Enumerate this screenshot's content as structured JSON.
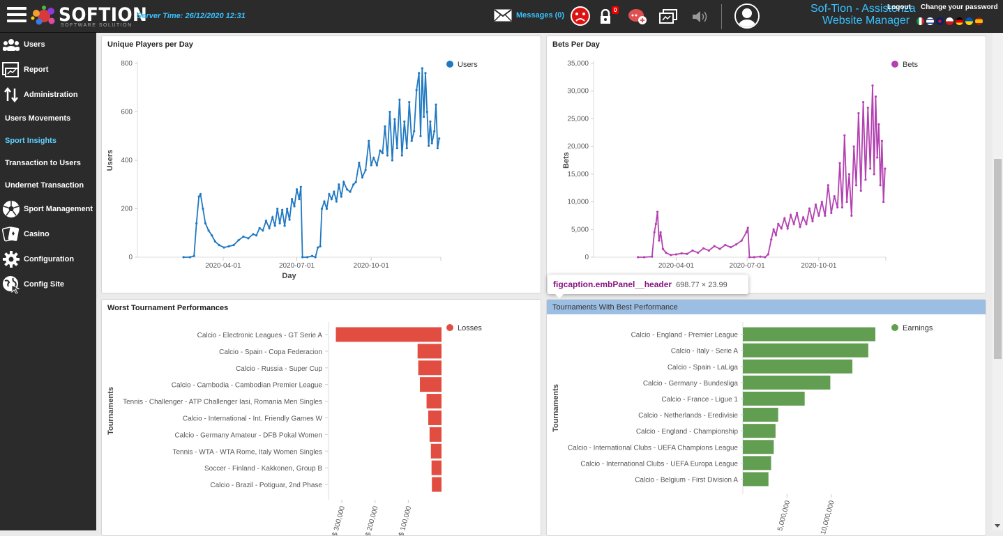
{
  "topbar": {
    "brand": "SOFTION",
    "brand_sub": "SOFTWARE SOLUTION",
    "server_time_label": "Server Time:",
    "server_time_value": "26/12/2020 12:31",
    "messages_label": "Messages (0)",
    "lock_badge": "0",
    "account_name": "Sof-Tion - Assistenza",
    "logout": "Logout",
    "change_password": "Change your password",
    "role": "Website Manager",
    "flags": [
      "it",
      "il",
      "gb",
      "cz",
      "de",
      "ua",
      "es"
    ]
  },
  "sidebar": {
    "items": [
      {
        "label": "Users",
        "icon": "users-icon"
      },
      {
        "label": "Report",
        "icon": "report-icon"
      },
      {
        "label": "Administration",
        "icon": "arrows-updown-icon"
      }
    ],
    "subitems": [
      {
        "label": "Users Movements",
        "active": false
      },
      {
        "label": "Sport Insights",
        "active": true
      },
      {
        "label": "Transaction to Users",
        "active": false
      },
      {
        "label": "Undernet Transaction",
        "active": false
      }
    ],
    "items2": [
      {
        "label": "Sport Management",
        "icon": "soccer-ball-icon"
      },
      {
        "label": "Casino",
        "icon": "cards-icon"
      },
      {
        "label": "Configuration",
        "icon": "gear-icon"
      },
      {
        "label": "Config Site",
        "icon": "globe-cursor-icon"
      }
    ]
  },
  "tooltip": {
    "selector": "figcaption.embPanel__header",
    "size": "698.77 × 23.99"
  },
  "chart_data": [
    {
      "type": "line",
      "title": "Unique Players per Day",
      "xlabel": "Day",
      "ylabel": "Users",
      "legend": "Users",
      "legend_position": "top-right",
      "color": "#1f78c1",
      "ylim": [
        0,
        800
      ],
      "yticks": [
        "0",
        "200",
        "400",
        "600",
        "800"
      ],
      "xticks": [
        {
          "x": "2020-04-01",
          "label": "2020-04-01"
        },
        {
          "x": "2020-07-01",
          "label": "2020-07-01"
        },
        {
          "x": "2020-10-01",
          "label": "2020-10-01"
        }
      ],
      "xlim": [
        "2019-12-17",
        "2020-12-26"
      ],
      "points": [
        [
          "2020-02-12",
          0
        ],
        [
          "2020-02-20",
          0
        ],
        [
          "2020-02-25",
          5
        ],
        [
          "2020-02-28",
          140
        ],
        [
          "2020-03-02",
          250
        ],
        [
          "2020-03-04",
          260
        ],
        [
          "2020-03-07",
          200
        ],
        [
          "2020-03-10",
          140
        ],
        [
          "2020-03-14",
          110
        ],
        [
          "2020-03-18",
          90
        ],
        [
          "2020-03-22",
          65
        ],
        [
          "2020-03-27",
          50
        ],
        [
          "2020-04-02",
          40
        ],
        [
          "2020-04-08",
          45
        ],
        [
          "2020-04-14",
          50
        ],
        [
          "2020-04-20",
          70
        ],
        [
          "2020-04-26",
          85
        ],
        [
          "2020-05-02",
          78
        ],
        [
          "2020-05-08",
          95
        ],
        [
          "2020-05-12",
          90
        ],
        [
          "2020-05-16",
          120
        ],
        [
          "2020-05-20",
          110
        ],
        [
          "2020-05-24",
          150
        ],
        [
          "2020-05-28",
          120
        ],
        [
          "2020-06-01",
          165
        ],
        [
          "2020-06-04",
          130
        ],
        [
          "2020-06-07",
          200
        ],
        [
          "2020-06-10",
          140
        ],
        [
          "2020-06-13",
          195
        ],
        [
          "2020-06-16",
          130
        ],
        [
          "2020-06-19",
          200
        ],
        [
          "2020-06-22",
          155
        ],
        [
          "2020-06-25",
          240
        ],
        [
          "2020-06-28",
          210
        ],
        [
          "2020-07-01",
          280
        ],
        [
          "2020-07-04",
          240
        ],
        [
          "2020-07-06",
          290
        ],
        [
          "2020-07-08",
          0
        ],
        [
          "2020-07-14",
          0
        ],
        [
          "2020-07-20",
          5
        ],
        [
          "2020-07-24",
          0
        ],
        [
          "2020-07-27",
          40
        ],
        [
          "2020-07-30",
          45
        ],
        [
          "2020-08-01",
          200
        ],
        [
          "2020-08-04",
          230
        ],
        [
          "2020-08-07",
          200
        ],
        [
          "2020-08-10",
          260
        ],
        [
          "2020-08-13",
          240
        ],
        [
          "2020-08-16",
          270
        ],
        [
          "2020-08-19",
          230
        ],
        [
          "2020-08-22",
          300
        ],
        [
          "2020-08-25",
          250
        ],
        [
          "2020-08-28",
          310
        ],
        [
          "2020-09-01",
          280
        ],
        [
          "2020-09-05",
          270
        ],
        [
          "2020-09-09",
          300
        ],
        [
          "2020-09-12",
          310
        ],
        [
          "2020-09-16",
          390
        ],
        [
          "2020-09-20",
          330
        ],
        [
          "2020-09-24",
          360
        ],
        [
          "2020-09-28",
          480
        ],
        [
          "2020-10-01",
          380
        ],
        [
          "2020-10-04",
          410
        ],
        [
          "2020-10-08",
          380
        ],
        [
          "2020-10-12",
          440
        ],
        [
          "2020-10-15",
          430
        ],
        [
          "2020-10-18",
          540
        ],
        [
          "2020-10-21",
          420
        ],
        [
          "2020-10-24",
          600
        ],
        [
          "2020-10-27",
          400
        ],
        [
          "2020-10-30",
          570
        ],
        [
          "2020-11-02",
          450
        ],
        [
          "2020-11-05",
          650
        ],
        [
          "2020-11-08",
          420
        ],
        [
          "2020-11-11",
          560
        ],
        [
          "2020-11-14",
          450
        ],
        [
          "2020-11-17",
          640
        ],
        [
          "2020-11-20",
          480
        ],
        [
          "2020-11-23",
          520
        ],
        [
          "2020-11-26",
          690
        ],
        [
          "2020-11-29",
          760
        ],
        [
          "2020-12-01",
          500
        ],
        [
          "2020-12-03",
          780
        ],
        [
          "2020-12-05",
          580
        ],
        [
          "2020-12-07",
          760
        ],
        [
          "2020-12-09",
          600
        ],
        [
          "2020-12-11",
          460
        ],
        [
          "2020-12-13",
          560
        ],
        [
          "2020-12-15",
          470
        ],
        [
          "2020-12-18",
          520
        ],
        [
          "2020-12-20",
          630
        ],
        [
          "2020-12-22",
          450
        ],
        [
          "2020-12-24",
          490
        ]
      ]
    },
    {
      "type": "line",
      "title": "Bets Per Day",
      "xlabel": "",
      "ylabel": "Bets",
      "legend": "Bets",
      "legend_position": "top-right",
      "color": "#b341b1",
      "ylim": [
        0,
        35000
      ],
      "yticks": [
        "0",
        "5,000",
        "10,000",
        "15,000",
        "20,000",
        "25,000",
        "30,000",
        "35,000"
      ],
      "xticks": [
        {
          "x": "2020-04-01",
          "label": "2020-04-01"
        },
        {
          "x": "2020-07-01",
          "label": "2020-07-01"
        },
        {
          "x": "2020-10-01",
          "label": "2020-10-01"
        }
      ],
      "xlim": [
        "2019-12-17",
        "2020-12-26"
      ],
      "points": [
        [
          "2020-02-12",
          0
        ],
        [
          "2020-02-20",
          0
        ],
        [
          "2020-03-01",
          100
        ],
        [
          "2020-03-04",
          4500
        ],
        [
          "2020-03-06",
          6000
        ],
        [
          "2020-03-08",
          8200
        ],
        [
          "2020-03-10",
          3000
        ],
        [
          "2020-03-12",
          4500
        ],
        [
          "2020-03-15",
          1500
        ],
        [
          "2020-03-19",
          800
        ],
        [
          "2020-03-25",
          400
        ],
        [
          "2020-04-01",
          500
        ],
        [
          "2020-04-08",
          700
        ],
        [
          "2020-04-15",
          600
        ],
        [
          "2020-04-22",
          1200
        ],
        [
          "2020-04-29",
          800
        ],
        [
          "2020-05-06",
          1600
        ],
        [
          "2020-05-13",
          1200
        ],
        [
          "2020-05-20",
          2000
        ],
        [
          "2020-05-27",
          1500
        ],
        [
          "2020-06-03",
          2200
        ],
        [
          "2020-06-10",
          1800
        ],
        [
          "2020-06-17",
          2300
        ],
        [
          "2020-06-24",
          3000
        ],
        [
          "2020-06-30",
          4500
        ],
        [
          "2020-07-02",
          5300
        ],
        [
          "2020-07-04",
          0
        ],
        [
          "2020-07-10",
          0
        ],
        [
          "2020-07-18",
          100
        ],
        [
          "2020-07-24",
          0
        ],
        [
          "2020-07-28",
          500
        ],
        [
          "2020-08-01",
          3200
        ],
        [
          "2020-08-04",
          5000
        ],
        [
          "2020-08-07",
          4000
        ],
        [
          "2020-08-10",
          6000
        ],
        [
          "2020-08-14",
          5200
        ],
        [
          "2020-08-18",
          7000
        ],
        [
          "2020-08-22",
          5200
        ],
        [
          "2020-08-26",
          7600
        ],
        [
          "2020-08-30",
          6000
        ],
        [
          "2020-09-03",
          8000
        ],
        [
          "2020-09-07",
          5500
        ],
        [
          "2020-09-11",
          7200
        ],
        [
          "2020-09-15",
          6000
        ],
        [
          "2020-09-19",
          8800
        ],
        [
          "2020-09-23",
          6500
        ],
        [
          "2020-09-27",
          9500
        ],
        [
          "2020-10-01",
          7500
        ],
        [
          "2020-10-05",
          10000
        ],
        [
          "2020-10-09",
          7500
        ],
        [
          "2020-10-13",
          13000
        ],
        [
          "2020-10-17",
          8000
        ],
        [
          "2020-10-21",
          11000
        ],
        [
          "2020-10-25",
          9000
        ],
        [
          "2020-10-28",
          17000
        ],
        [
          "2020-10-31",
          9000
        ],
        [
          "2020-11-03",
          22000
        ],
        [
          "2020-11-06",
          10000
        ],
        [
          "2020-11-09",
          15000
        ],
        [
          "2020-11-12",
          7500
        ],
        [
          "2020-11-15",
          20000
        ],
        [
          "2020-11-18",
          13000
        ],
        [
          "2020-11-21",
          26000
        ],
        [
          "2020-11-24",
          12000
        ],
        [
          "2020-11-27",
          28000
        ],
        [
          "2020-11-30",
          14000
        ],
        [
          "2020-12-03",
          27000
        ],
        [
          "2020-12-06",
          16000
        ],
        [
          "2020-12-09",
          31000
        ],
        [
          "2020-12-11",
          15000
        ],
        [
          "2020-12-13",
          29000
        ],
        [
          "2020-12-15",
          18000
        ],
        [
          "2020-12-17",
          24000
        ],
        [
          "2020-12-19",
          13000
        ],
        [
          "2020-12-21",
          21000
        ],
        [
          "2020-12-23",
          10000
        ],
        [
          "2020-12-25",
          16000
        ]
      ]
    },
    {
      "type": "bar",
      "orientation": "horizontal",
      "title": "Worst Tournament Performances",
      "ylabel": "Tournaments",
      "legend": "Losses",
      "legend_position": "top-right",
      "color": "#e24d42",
      "axis_reversed": true,
      "xlim": [
        0,
        340000
      ],
      "xticks": [
        {
          "v": 300000,
          "label": "$ 300,000"
        },
        {
          "v": 200000,
          "label": "$ 200,000"
        },
        {
          "v": 100000,
          "label": "$ 100,000"
        }
      ],
      "categories": [
        "Calcio - Electronic Leagues - GT Serie A",
        "Calcio - Spain - Copa Federacion",
        "Calcio - Russia - Super Cup",
        "Calcio - Cambodia - Cambodian Premier League",
        "Tennis - Challenger - ATP Challenger Iasi, Romania Men Singles",
        "Calcio - International - Int. Friendly Games W",
        "Calcio - Germany Amateur - DFB Pokal Women",
        "Tennis - WTA - WTA Rome, Italy Women Singles",
        "Soccer - Finland - Kakkonen, Group B",
        "Calcio - Brazil - Potiguar, 2nd Phase"
      ],
      "values": [
        318000,
        72000,
        70000,
        65000,
        45000,
        40000,
        36000,
        32000,
        30000,
        29000
      ]
    },
    {
      "type": "bar",
      "orientation": "horizontal",
      "title": "Tournaments With Best Performance",
      "ylabel": "Tournaments",
      "legend": "Earnings",
      "legend_position": "top-right",
      "color": "#629e51",
      "xlim": [
        0,
        15000000
      ],
      "xticks": [
        {
          "v": 5000000,
          "label": "5,000,000"
        },
        {
          "v": 10000000,
          "label": "10,000,000"
        }
      ],
      "categories": [
        "Calcio - England - Premier League",
        "Calcio - Italy - Serie A",
        "Calcio - Spain - LaLiga",
        "Calcio - Germany - Bundesliga",
        "Calcio - France - Ligue 1",
        "Calcio - Netherlands - Eredivisie",
        "Calcio - England - Championship",
        "Calcio - International Clubs - UEFA Champions League",
        "Calcio - International Clubs - UEFA Europa League",
        "Calcio - Belgium - First Division A"
      ],
      "values": [
        15000000,
        14200000,
        12400000,
        9900000,
        7000000,
        4000000,
        3700000,
        3500000,
        3200000,
        2900000
      ]
    }
  ]
}
